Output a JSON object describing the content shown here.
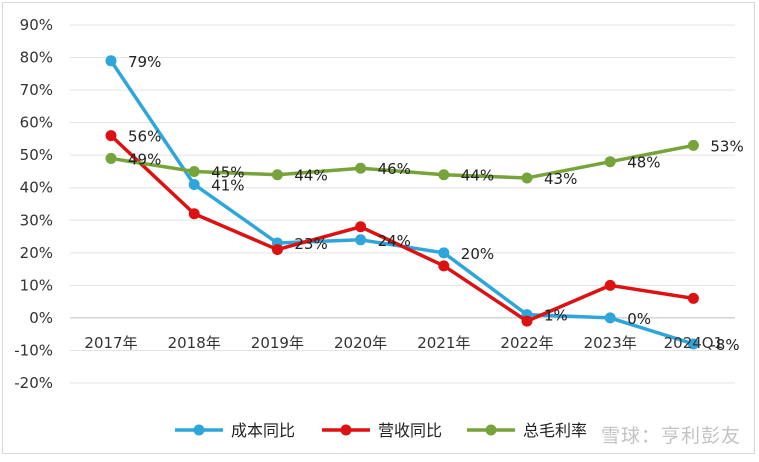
{
  "chart_data": {
    "type": "line",
    "categories": [
      "2017年",
      "2018年",
      "2019年",
      "2020年",
      "2021年",
      "2022年",
      "2023年",
      "2024Q1"
    ],
    "y_ticks": [
      "90%",
      "80%",
      "70%",
      "60%",
      "50%",
      "40%",
      "30%",
      "20%",
      "10%",
      "0%",
      "-10%",
      "-20%"
    ],
    "ylim": [
      -20,
      90
    ],
    "grid": true,
    "legend_position": "bottom",
    "series": [
      {
        "name": "成本同比",
        "color": "#2EA6DB",
        "values": [
          79,
          41,
          23,
          24,
          20,
          1,
          0,
          -8
        ],
        "labels": [
          "79%",
          "41%",
          "23%",
          "24%",
          "20%",
          "1%",
          "0%",
          "-8%"
        ]
      },
      {
        "name": "营收同比",
        "color": "#DD1111",
        "values": [
          56,
          32,
          21,
          28,
          16,
          -1,
          10,
          6
        ],
        "labels": [
          "56%",
          "",
          "",
          "",
          "",
          "",
          "",
          ""
        ]
      },
      {
        "name": "总毛利率",
        "color": "#78A33A",
        "values": [
          49,
          45,
          44,
          46,
          44,
          43,
          48,
          53
        ],
        "labels": [
          "49%",
          "45%",
          "44%",
          "46%",
          "44%",
          "43%",
          "48%",
          "53%"
        ]
      }
    ]
  },
  "watermark": "雪球：亨利彭友"
}
